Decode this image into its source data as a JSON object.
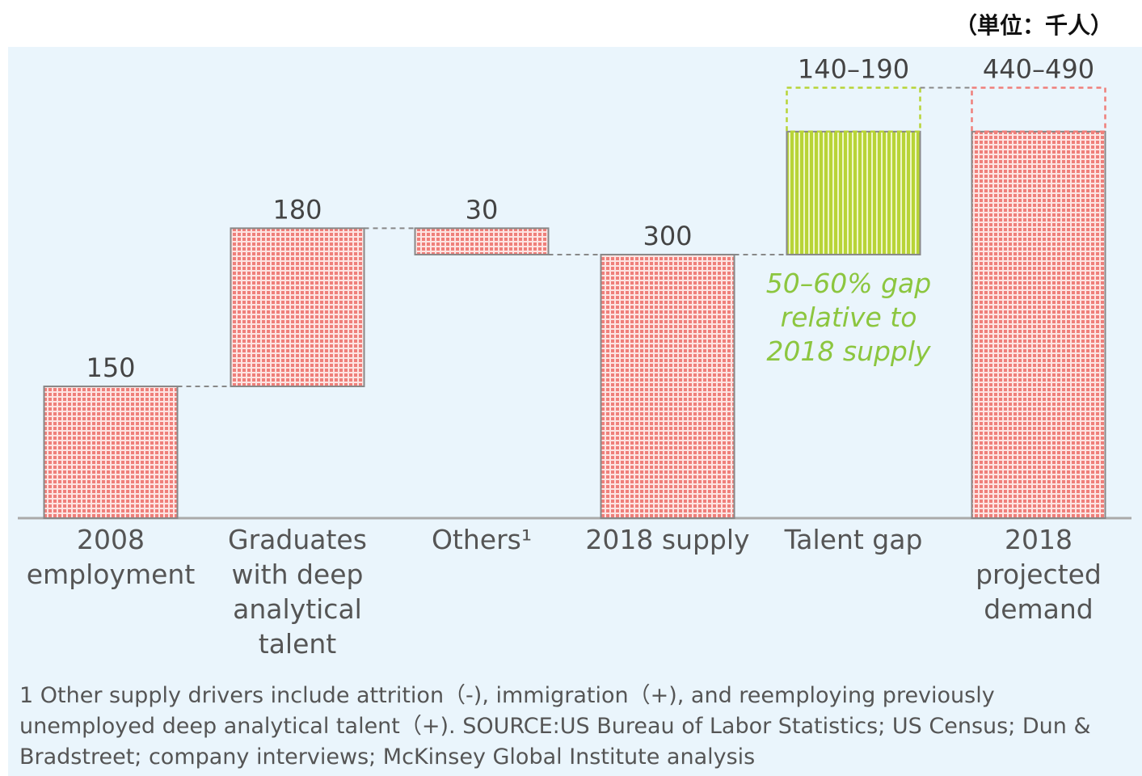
{
  "unit_label": "（単位：千人）",
  "chart_data": {
    "type": "waterfall",
    "categories": [
      "2008\nemployment",
      "Graduates\nwith deep\nanalytical\ntalent",
      "Others¹",
      "2018 supply",
      "Talent gap",
      "2018 projected\ndemand"
    ],
    "values": [
      150,
      180,
      -30,
      300,
      140,
      440
    ],
    "upper": [
      null,
      null,
      null,
      null,
      190,
      490
    ],
    "value_labels": [
      null,
      null,
      "30",
      null,
      "140–190",
      "440–490"
    ],
    "total_indices": [
      0,
      3,
      5
    ],
    "colors": [
      "#ef7f7a",
      "#ef7f7a",
      "#ef7f7a",
      "#ef7f7a",
      "#b8d437",
      "#ef7f7a"
    ],
    "ylim": [
      0,
      530
    ],
    "annotation": "50–60% gap\nrelative to\n2018 supply",
    "footnote": "1 Other supply drivers include attrition（-), immigration（+), and reemploying previously unemployed deep analytical talent（+). SOURCE:US Bureau of Labor Statistics; US Census; Dun & Bradstreet; company interviews; McKinsey Global Institute analysis"
  }
}
